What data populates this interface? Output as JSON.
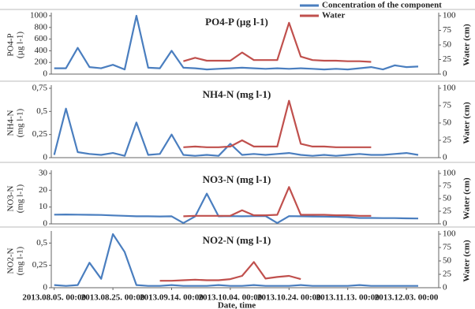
{
  "chart_data": [
    {
      "type": "line",
      "title": "PO4-P (µg l-1)",
      "ylabel": [
        "PO4-P",
        "(µg l-1)"
      ],
      "y2label": "Water (cm)",
      "legend": "top-right",
      "x": [
        "2013.08.05. 00:00",
        "2013.08.09. 00:00",
        "2013.08.13. 00:00",
        "2013.08.17. 00:00",
        "2013.08.21. 00:00",
        "2013.08.25. 00:00",
        "2013.08.29. 00:00",
        "2013.09.02. 00:00",
        "2013.09.06. 00:00",
        "2013.09.10. 00:00",
        "2013.09.14. 00:00",
        "2013.09.18. 00:00",
        "2013.09.22. 00:00",
        "2013.09.26. 00:00",
        "2013.09.30. 00:00",
        "2013.10.04. 00:00",
        "2013.10.08. 00:00",
        "2013.10.12. 00:00",
        "2013.10.16. 00:00",
        "2013.10.20. 00:00",
        "2013.10.24. 00:00",
        "2013.10.28. 00:00",
        "2013.11.01. 00:00",
        "2013.11.05. 00:00",
        "2013.11.09. 00:00",
        "2013.11.13. 00:00",
        "2013.11.17. 00:00",
        "2013.11.21. 00:00",
        "2013.11.25. 00:00",
        "2013.11.29. 00:00",
        "2013.12.03. 00:00",
        "2013.12.07. 00:00"
      ],
      "xlim": [
        "2013.08.04. 00:00",
        "2013.12.14. 00:00"
      ],
      "ylim": [
        0,
        1000
      ],
      "yticks": [
        0,
        200,
        400,
        600,
        800,
        1000
      ],
      "y2lim": [
        0,
        100
      ],
      "y2ticks": [
        0,
        25,
        50,
        75,
        100
      ],
      "series": [
        {
          "name": "Concentration of the component",
          "color": "#4a7ebf",
          "values": [
            100,
            100,
            450,
            120,
            100,
            160,
            80,
            1000,
            110,
            100,
            400,
            110,
            100,
            80,
            90,
            100,
            110,
            100,
            90,
            100,
            90,
            100,
            90,
            80,
            90,
            80,
            100,
            120,
            80,
            150,
            120,
            130
          ]
        },
        {
          "name": "Water",
          "color": "#c0504d",
          "axis": "y2",
          "values": [
            null,
            null,
            null,
            null,
            null,
            null,
            null,
            null,
            null,
            null,
            null,
            22,
            28,
            23,
            23,
            23,
            37,
            24,
            24,
            24,
            88,
            30,
            24,
            23,
            23,
            22,
            22,
            21,
            null,
            null,
            null,
            null
          ]
        }
      ]
    },
    {
      "type": "line",
      "title": "NH4-N (mg l-1)",
      "ylabel": [
        "NH4-N",
        "(mg l-1)"
      ],
      "y2label": "Water (cm)",
      "x": [
        "2013.08.05. 00:00",
        "2013.08.09. 00:00",
        "2013.08.13. 00:00",
        "2013.08.17. 00:00",
        "2013.08.21. 00:00",
        "2013.08.25. 00:00",
        "2013.08.29. 00:00",
        "2013.09.02. 00:00",
        "2013.09.06. 00:00",
        "2013.09.10. 00:00",
        "2013.09.14. 00:00",
        "2013.09.18. 00:00",
        "2013.09.22. 00:00",
        "2013.09.26. 00:00",
        "2013.09.30. 00:00",
        "2013.10.04. 00:00",
        "2013.10.08. 00:00",
        "2013.10.12. 00:00",
        "2013.10.16. 00:00",
        "2013.10.20. 00:00",
        "2013.10.24. 00:00",
        "2013.10.28. 00:00",
        "2013.11.01. 00:00",
        "2013.11.05. 00:00",
        "2013.11.09. 00:00",
        "2013.11.13. 00:00",
        "2013.11.17. 00:00",
        "2013.11.21. 00:00",
        "2013.11.25. 00:00",
        "2013.11.29. 00:00",
        "2013.12.03. 00:00",
        "2013.12.07. 00:00"
      ],
      "xlim": [
        "2013.08.04. 00:00",
        "2013.12.14. 00:00"
      ],
      "ylim": [
        0,
        0.75
      ],
      "yticks": [
        0,
        {
          "value": 0.25,
          "label": "0,25"
        },
        {
          "value": 0.5,
          "label": "0,5"
        },
        {
          "value": 0.75,
          "label": "0,75"
        }
      ],
      "y2lim": [
        0,
        100
      ],
      "y2ticks": [
        0,
        25,
        50,
        75,
        100
      ],
      "series": [
        {
          "name": "Concentration of the component",
          "color": "#4a7ebf",
          "values": [
            0.03,
            0.53,
            0.06,
            0.04,
            0.03,
            0.05,
            0.02,
            0.38,
            0.03,
            0.04,
            0.25,
            0.03,
            0.02,
            0.03,
            0.02,
            0.15,
            0.03,
            0.04,
            0.03,
            0.04,
            0.05,
            0.03,
            0.02,
            0.03,
            0.02,
            0.03,
            0.04,
            0.03,
            0.03,
            0.04,
            0.05,
            0.03
          ]
        },
        {
          "name": "Water",
          "color": "#c0504d",
          "axis": "y2",
          "values": [
            null,
            null,
            null,
            null,
            null,
            null,
            null,
            null,
            null,
            null,
            null,
            15,
            16,
            15,
            15,
            16,
            25,
            16,
            16,
            16,
            82,
            20,
            16,
            16,
            15,
            15,
            15,
            15,
            null,
            null,
            null,
            null
          ]
        }
      ]
    },
    {
      "type": "line",
      "title": "NO3-N (mg l-1)",
      "ylabel": [
        "NO3-N",
        "(mg l-1)"
      ],
      "y2label": "Water (cm)",
      "x": [
        "2013.08.05. 00:00",
        "2013.08.09. 00:00",
        "2013.08.13. 00:00",
        "2013.08.17. 00:00",
        "2013.08.21. 00:00",
        "2013.08.25. 00:00",
        "2013.08.29. 00:00",
        "2013.09.02. 00:00",
        "2013.09.06. 00:00",
        "2013.09.10. 00:00",
        "2013.09.14. 00:00",
        "2013.09.18. 00:00",
        "2013.09.22. 00:00",
        "2013.09.26. 00:00",
        "2013.09.30. 00:00",
        "2013.10.04. 00:00",
        "2013.10.08. 00:00",
        "2013.10.12. 00:00",
        "2013.10.16. 00:00",
        "2013.10.20. 00:00",
        "2013.10.24. 00:00",
        "2013.10.28. 00:00",
        "2013.11.01. 00:00",
        "2013.11.05. 00:00",
        "2013.11.09. 00:00",
        "2013.11.13. 00:00",
        "2013.11.17. 00:00",
        "2013.11.21. 00:00",
        "2013.11.25. 00:00",
        "2013.11.29. 00:00",
        "2013.12.03. 00:00",
        "2013.12.07. 00:00"
      ],
      "xlim": [
        "2013.08.04. 00:00",
        "2013.12.14. 00:00"
      ],
      "ylim": [
        0,
        30
      ],
      "yticks": [
        0,
        10,
        20,
        30
      ],
      "y2lim": [
        0,
        100
      ],
      "y2ticks": [
        0,
        25,
        50,
        75,
        100
      ],
      "series": [
        {
          "name": "Concentration of the component",
          "color": "#4a7ebf",
          "values": [
            5.5,
            5.6,
            5.5,
            5.4,
            5.3,
            5,
            4.8,
            4.5,
            4.5,
            4.4,
            4.5,
            0.5,
            4.4,
            18,
            4.5,
            4.6,
            4.5,
            4.6,
            4.7,
            0.5,
            4.6,
            4.5,
            4.4,
            4.3,
            4.2,
            4,
            3.5,
            3.5,
            3.4,
            3.4,
            3.3,
            3.2
          ]
        },
        {
          "name": "Water",
          "color": "#c0504d",
          "axis": "y2",
          "values": [
            null,
            null,
            null,
            null,
            null,
            null,
            null,
            null,
            null,
            null,
            null,
            15,
            16,
            16,
            16,
            16,
            27,
            17,
            17,
            18,
            73,
            18,
            18,
            18,
            17,
            17,
            16,
            16,
            null,
            null,
            null,
            null
          ]
        }
      ]
    },
    {
      "type": "line",
      "title": "NO2-N (mg l-1)",
      "ylabel": [
        "NO2-N",
        "(mg l-1)"
      ],
      "y2label": "Water (cm)",
      "xlabel": "Date, time",
      "x": [
        "2013.08.05. 00:00",
        "2013.08.09. 00:00",
        "2013.08.13. 00:00",
        "2013.08.17. 00:00",
        "2013.08.21. 00:00",
        "2013.08.25. 00:00",
        "2013.08.29. 00:00",
        "2013.09.02. 00:00",
        "2013.09.06. 00:00",
        "2013.09.10. 00:00",
        "2013.09.14. 00:00",
        "2013.09.18. 00:00",
        "2013.09.22. 00:00",
        "2013.09.26. 00:00",
        "2013.09.30. 00:00",
        "2013.10.04. 00:00",
        "2013.10.08. 00:00",
        "2013.10.12. 00:00",
        "2013.10.16. 00:00",
        "2013.10.20. 00:00",
        "2013.10.24. 00:00",
        "2013.10.28. 00:00",
        "2013.11.01. 00:00",
        "2013.11.05. 00:00",
        "2013.11.09. 00:00",
        "2013.11.13. 00:00",
        "2013.11.17. 00:00",
        "2013.11.21. 00:00",
        "2013.11.25. 00:00",
        "2013.11.29. 00:00",
        "2013.12.03. 00:00",
        "2013.12.07. 00:00"
      ],
      "xlim": [
        "2013.08.04. 00:00",
        "2013.12.14. 00:00"
      ],
      "xticks": [
        "2013.08.05. 00:00",
        "2013.08.25. 00:00",
        "2013.09.14. 00:00",
        "2013.10.04. 00:00",
        "2013.10.24. 00:00",
        "2013.11.13. 00:00",
        "2013.12.03. 00:00"
      ],
      "ylim": [
        0,
        0.6
      ],
      "yticks": [
        0,
        {
          "value": 0.25,
          "label": "0,25"
        },
        {
          "value": 0.5,
          "label": "0,5"
        }
      ],
      "y2lim": [
        0,
        100
      ],
      "y2ticks": [
        0,
        25,
        50,
        75,
        100
      ],
      "series": [
        {
          "name": "Concentration of the component",
          "color": "#4a7ebf",
          "values": [
            0.03,
            0.02,
            0.03,
            0.28,
            0.1,
            0.6,
            0.4,
            0.03,
            0.02,
            0.02,
            0.03,
            0.02,
            0.02,
            0.02,
            0.03,
            0.02,
            0.02,
            0.03,
            0.02,
            0.02,
            0.02,
            0.03,
            0.02,
            0.02,
            0.02,
            0.02,
            0.03,
            0.02,
            0.02,
            0.02,
            0.02,
            0.02
          ]
        },
        {
          "name": "Water",
          "color": "#c0504d",
          "axis": "y2",
          "values": [
            null,
            null,
            null,
            null,
            null,
            null,
            null,
            null,
            null,
            13,
            13,
            14,
            15,
            14,
            14,
            16,
            22,
            48,
            17,
            20,
            22,
            16,
            null,
            null,
            null,
            null,
            null,
            null,
            null,
            null,
            null,
            null
          ]
        }
      ]
    }
  ]
}
